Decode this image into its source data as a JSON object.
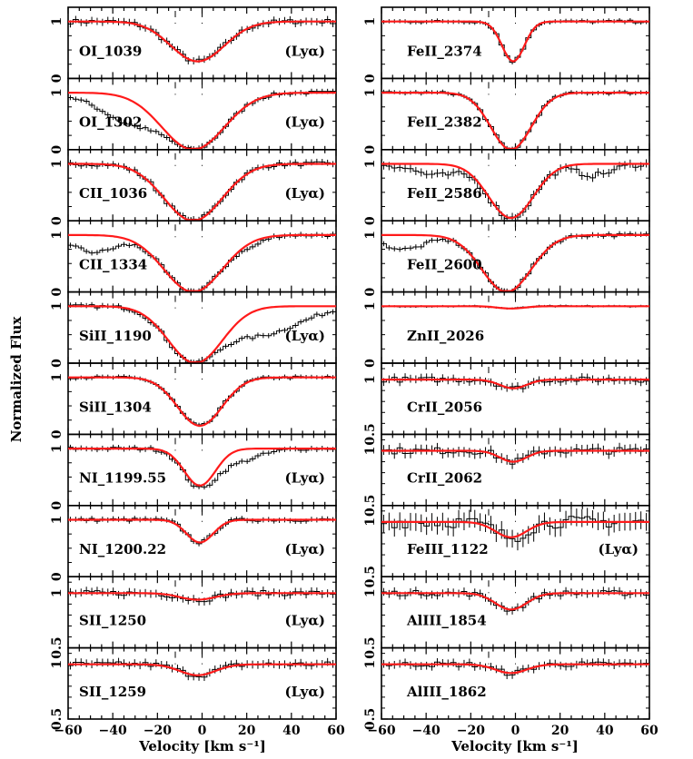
{
  "chart_data": {
    "type": "line",
    "ylabel": "Normalized Flux",
    "xlabel": "Velocity [km s⁻¹]",
    "xlim": [
      -60,
      60
    ],
    "x_ticks": [
      "−60",
      "−40",
      "−20",
      "0",
      "20",
      "40",
      "60"
    ],
    "component_velocities": [
      -12,
      0
    ],
    "series_colors": {
      "model": "#ff1a1a",
      "data": "#000000"
    },
    "columns": [
      {
        "name": "left",
        "panels": [
          {
            "label": "OI_1039",
            "tag": "(Lyα)",
            "ylim": [
              0,
              1.25
            ],
            "yticks": [
              "0",
              "1"
            ],
            "depth": 0.7,
            "center": -2,
            "width": 12,
            "noise": 0.07,
            "contam": []
          },
          {
            "label": "OI_1302",
            "tag": "(Lyα)",
            "ylim": [
              0,
              1.25
            ],
            "yticks": [
              "0",
              "1"
            ],
            "depth": 1.0,
            "center": -4,
            "width": 14,
            "noise": 0.05,
            "contam": [
              [
                -30,
                0.5,
                15
              ]
            ]
          },
          {
            "label": "CII_1036",
            "tag": "(Lyα)",
            "ylim": [
              0,
              1.25
            ],
            "yticks": [
              "0",
              "1"
            ],
            "depth": 1.0,
            "center": -4,
            "width": 13,
            "noise": 0.06,
            "contam": []
          },
          {
            "label": "CII_1334",
            "tag": "",
            "ylim": [
              0,
              1.25
            ],
            "yticks": [
              "0",
              "1"
            ],
            "depth": 1.0,
            "center": -4,
            "width": 13,
            "noise": 0.05,
            "contam": [
              [
                -48,
                0.3,
                10
              ],
              [
                22,
                0.1,
                5
              ]
            ]
          },
          {
            "label": "SiII_1190",
            "tag": "(Lyα)",
            "ylim": [
              0,
              1.25
            ],
            "yticks": [
              "0",
              "1"
            ],
            "depth": 1.0,
            "center": -3,
            "width": 12,
            "noise": 0.05,
            "contam": [
              [
                25,
                0.5,
                18
              ]
            ]
          },
          {
            "label": "SiII_1304",
            "tag": "",
            "ylim": [
              0,
              1.25
            ],
            "yticks": [
              "0",
              "1"
            ],
            "depth": 0.85,
            "center": -1,
            "width": 10,
            "noise": 0.04,
            "contam": []
          },
          {
            "label": "NI_1199.55",
            "tag": "(Lyα)",
            "ylim": [
              0,
              1.25
            ],
            "yticks": [
              "0",
              "1"
            ],
            "depth": 0.65,
            "center": -1,
            "width": 7,
            "noise": 0.05,
            "contam": [
              [
                12,
                0.25,
                12
              ]
            ]
          },
          {
            "label": "NI_1200.22",
            "tag": "(Lyα)",
            "ylim": [
              0,
              1.25
            ],
            "yticks": [
              "0",
              "1"
            ],
            "depth": 0.4,
            "center": -1,
            "width": 6,
            "noise": 0.05,
            "contam": []
          },
          {
            "label": "SII_1250",
            "tag": "(Lyα)",
            "ylim": [
              0.5,
              1.15
            ],
            "yticks": [
              "0.5",
              "1"
            ],
            "depth": 0.06,
            "center": -2,
            "width": 8,
            "noise": 0.04,
            "contam": []
          },
          {
            "label": "SII_1259",
            "tag": "(Lyα)",
            "ylim": [
              0.5,
              1.15
            ],
            "yticks": [
              "0.5",
              "1"
            ],
            "depth": 0.1,
            "center": -2,
            "width": 8,
            "noise": 0.04,
            "contam": []
          }
        ]
      },
      {
        "name": "right",
        "panels": [
          {
            "label": "FeII_2374",
            "tag": "",
            "ylim": [
              0,
              1.25
            ],
            "yticks": [
              "0",
              "1"
            ],
            "depth": 0.7,
            "center": -1,
            "width": 5,
            "noise": 0.04,
            "contam": []
          },
          {
            "label": "FeII_2382",
            "tag": "",
            "ylim": [
              0,
              1.25
            ],
            "yticks": [
              "0",
              "1"
            ],
            "depth": 1.0,
            "center": -2,
            "width": 9,
            "noise": 0.04,
            "contam": []
          },
          {
            "label": "FeII_2586",
            "tag": "",
            "ylim": [
              0,
              1.25
            ],
            "yticks": [
              "0",
              "1"
            ],
            "depth": 0.95,
            "center": -2,
            "width": 10,
            "noise": 0.08,
            "contam": [
              [
                -35,
                0.2,
                10
              ],
              [
                35,
                0.2,
                8
              ]
            ]
          },
          {
            "label": "FeII_2600",
            "tag": "",
            "ylim": [
              0,
              1.25
            ],
            "yticks": [
              "0",
              "1"
            ],
            "depth": 1.0,
            "center": -4,
            "width": 11,
            "noise": 0.05,
            "contam": [
              [
                -50,
                0.25,
                10
              ]
            ]
          },
          {
            "label": "ZnII_2026",
            "tag": "",
            "ylim": [
              0,
              1.25
            ],
            "yticks": [
              "0",
              "1"
            ],
            "depth": 0.04,
            "center": -2,
            "width": 6,
            "noise": 0.02,
            "contam": []
          },
          {
            "label": "CrII_2056",
            "tag": "",
            "ylim": [
              0.5,
              1.15
            ],
            "yticks": [
              "0.5",
              "1"
            ],
            "depth": 0.08,
            "center": -1,
            "width": 6,
            "noise": 0.04,
            "contam": []
          },
          {
            "label": "CrII_2062",
            "tag": "",
            "ylim": [
              0.5,
              1.15
            ],
            "yticks": [
              "0.5",
              "1"
            ],
            "depth": 0.1,
            "center": -1,
            "width": 6,
            "noise": 0.05,
            "contam": []
          },
          {
            "label": "FeIII_1122",
            "tag": "(Lyα)",
            "ylim": [
              0.5,
              1.15
            ],
            "yticks": [
              "0.5",
              "1"
            ],
            "depth": 0.14,
            "center": -2,
            "width": 7,
            "noise": 0.09,
            "contam": []
          },
          {
            "label": "AlIII_1854",
            "tag": "",
            "ylim": [
              0.5,
              1.15
            ],
            "yticks": [
              "0.5",
              "1"
            ],
            "depth": 0.15,
            "center": -2,
            "width": 7,
            "noise": 0.04,
            "contam": []
          },
          {
            "label": "AlIII_1862",
            "tag": "",
            "ylim": [
              0.5,
              1.15
            ],
            "yticks": [
              "0.5",
              "1"
            ],
            "depth": 0.08,
            "center": -2,
            "width": 7,
            "noise": 0.04,
            "contam": []
          }
        ]
      }
    ]
  }
}
